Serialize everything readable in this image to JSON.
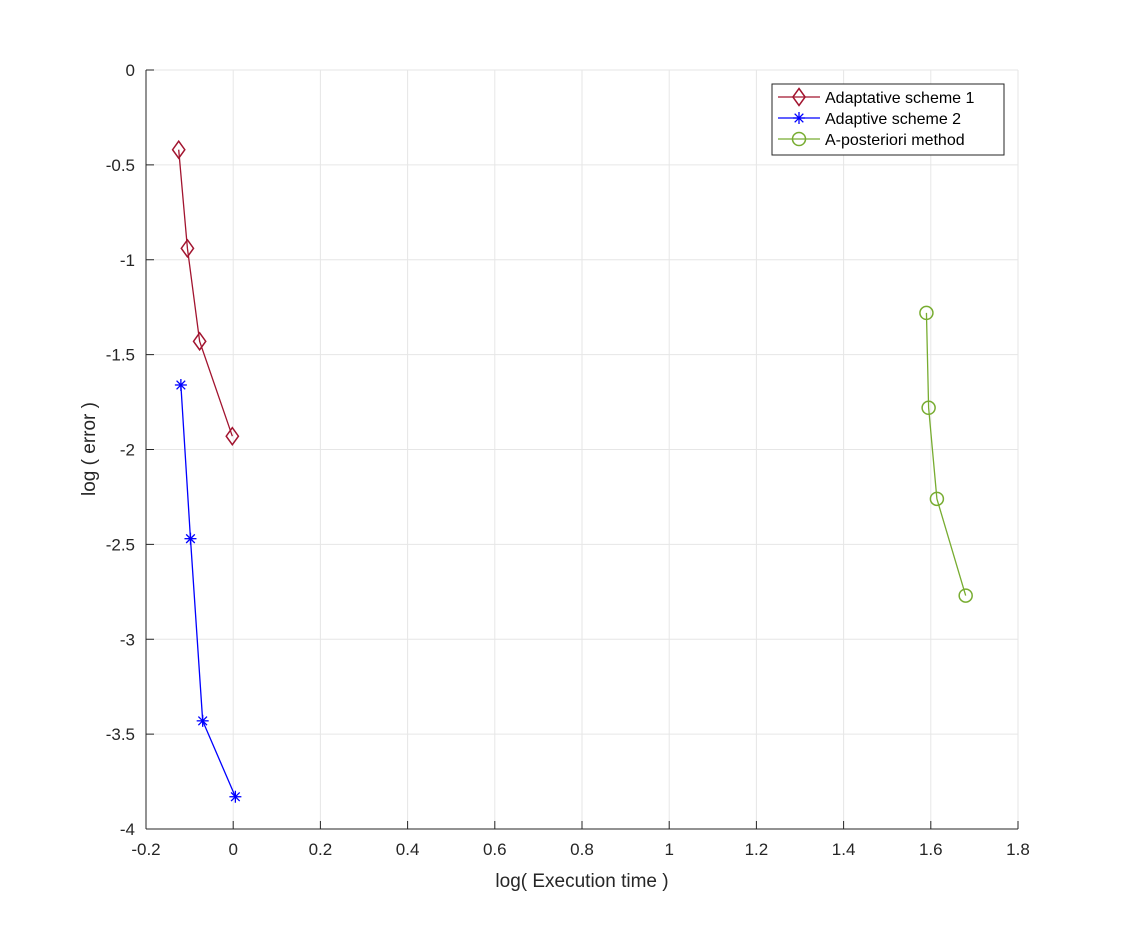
{
  "chart_data": {
    "type": "line",
    "title": "",
    "xlabel": "log( Execution time )",
    "ylabel": "log ( error )",
    "xlim": [
      -0.2,
      1.8
    ],
    "ylim": [
      -4,
      0
    ],
    "xticks": [
      "-0.2",
      "0",
      "0.2",
      "0.4",
      "0.6",
      "0.8",
      "1",
      "1.2",
      "1.4",
      "1.6",
      "1.8"
    ],
    "yticks": [
      "0",
      "-0.5",
      "-1",
      "-1.5",
      "-2",
      "-2.5",
      "-3",
      "-3.5",
      "-4"
    ],
    "grid": true,
    "legend_position": "top-right",
    "series": [
      {
        "name": "Adaptative scheme 1",
        "color": "#a2142f",
        "marker": "diamond",
        "x": [
          -0.125,
          -0.105,
          -0.077,
          -0.002
        ],
        "y": [
          -0.42,
          -0.94,
          -1.43,
          -1.93
        ]
      },
      {
        "name": "Adaptive scheme 2",
        "color": "#0000ff",
        "marker": "asterisk",
        "x": [
          -0.12,
          -0.098,
          -0.07,
          0.005
        ],
        "y": [
          -1.66,
          -2.47,
          -3.43,
          -3.83
        ]
      },
      {
        "name": "A-posteriori method",
        "color": "#77ac30",
        "marker": "circle",
        "x": [
          1.59,
          1.595,
          1.614,
          1.68
        ],
        "y": [
          -1.28,
          -1.78,
          -2.26,
          -2.77
        ]
      }
    ]
  }
}
